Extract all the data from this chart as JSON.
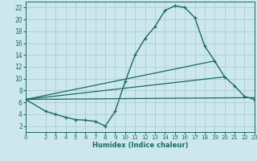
{
  "xlabel": "Humidex (Indice chaleur)",
  "bg_color": "#cce8ee",
  "grid_color": "#aaccd4",
  "line_color": "#1a6b5a",
  "xlim": [
    0,
    23
  ],
  "ylim": [
    1,
    23
  ],
  "xticks": [
    0,
    2,
    3,
    4,
    5,
    6,
    7,
    8,
    9,
    10,
    11,
    12,
    13,
    14,
    15,
    16,
    17,
    18,
    19,
    20,
    21,
    22,
    23
  ],
  "yticks": [
    2,
    4,
    6,
    8,
    10,
    12,
    14,
    16,
    18,
    20,
    22
  ],
  "curve_main_x": [
    0,
    2,
    3,
    4,
    5,
    6,
    7,
    8,
    9,
    10,
    11,
    12,
    13,
    14,
    15,
    16,
    17,
    18,
    19,
    20,
    21,
    22,
    23
  ],
  "curve_main_y": [
    6.5,
    4.5,
    4.0,
    3.5,
    3.1,
    3.0,
    2.8,
    2.0,
    4.5,
    9.5,
    14.0,
    16.8,
    18.8,
    21.5,
    22.3,
    22.0,
    20.3,
    15.5,
    13.0,
    10.3,
    8.8,
    7.0,
    6.5
  ],
  "line1_x": [
    0,
    23
  ],
  "line1_y": [
    6.5,
    6.8
  ],
  "line2_x": [
    0,
    20
  ],
  "line2_y": [
    6.5,
    10.3
  ],
  "line3_x": [
    0,
    19
  ],
  "line3_y": [
    6.5,
    13.0
  ]
}
